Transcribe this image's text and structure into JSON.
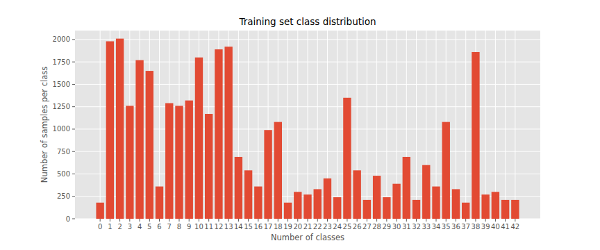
{
  "chart_data": {
    "type": "bar",
    "title": "Training set class distribution",
    "x_label": "Number of classes",
    "y_label": "Number of samples per class",
    "categories": [
      "0",
      "1",
      "2",
      "3",
      "4",
      "5",
      "6",
      "7",
      "8",
      "9",
      "10",
      "11",
      "12",
      "13",
      "14",
      "15",
      "16",
      "17",
      "18",
      "19",
      "20",
      "21",
      "22",
      "23",
      "24",
      "25",
      "26",
      "27",
      "28",
      "29",
      "30",
      "31",
      "32",
      "33",
      "34",
      "35",
      "36",
      "37",
      "38",
      "39",
      "40",
      "41",
      "42"
    ],
    "values": [
      180,
      1980,
      2010,
      1260,
      1770,
      1650,
      360,
      1290,
      1260,
      1320,
      1800,
      1170,
      1890,
      1920,
      690,
      540,
      360,
      990,
      1080,
      180,
      300,
      270,
      330,
      450,
      240,
      1350,
      540,
      210,
      480,
      240,
      390,
      690,
      210,
      599,
      360,
      1080,
      330,
      180,
      1860,
      270,
      300,
      210,
      210
    ],
    "color": "#e24a33",
    "ylim": [
      0,
      2100
    ],
    "yticks": [
      0,
      250,
      500,
      750,
      1000,
      1250,
      1500,
      1750,
      2000
    ],
    "grid": true
  }
}
